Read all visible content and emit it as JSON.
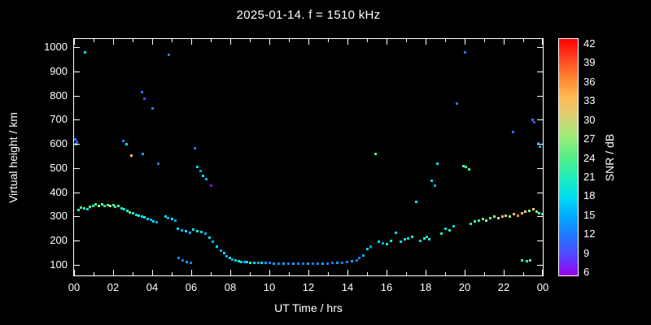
{
  "chart_data": {
    "type": "scatter",
    "title": "2025-01-14. f = 1510 kHz",
    "xlabel": "UT Time / hrs",
    "ylabel": "Virtual height / km",
    "xlim": [
      0,
      24
    ],
    "ylim": [
      55,
      1035
    ],
    "background": "#000000",
    "frame_color": "#ffffff",
    "x_ticks": {
      "values": [
        0,
        2,
        4,
        6,
        8,
        10,
        12,
        14,
        16,
        18,
        20,
        22,
        24
      ],
      "labels": [
        "00",
        "02",
        "04",
        "06",
        "08",
        "10",
        "12",
        "14",
        "16",
        "18",
        "20",
        "22",
        "00"
      ]
    },
    "y_ticks": {
      "values": [
        100,
        200,
        300,
        400,
        500,
        600,
        700,
        800,
        900,
        1000
      ],
      "labels": [
        "100",
        "200",
        "300",
        "400",
        "500",
        "600",
        "700",
        "800",
        "900",
        "1000"
      ]
    },
    "colorbar": {
      "label": "SNR / dB",
      "min": 6,
      "max": 42,
      "tick_values": [
        6,
        9,
        12,
        15,
        18,
        21,
        24,
        27,
        30,
        33,
        36,
        39,
        42
      ],
      "colormap": [
        {
          "value": 6,
          "color": "#9900ee"
        },
        {
          "value": 9,
          "color": "#5544ff"
        },
        {
          "value": 12,
          "color": "#2277ff"
        },
        {
          "value": 15,
          "color": "#00aaff"
        },
        {
          "value": 18,
          "color": "#00ddee"
        },
        {
          "value": 21,
          "color": "#22eebb"
        },
        {
          "value": 24,
          "color": "#55ee88"
        },
        {
          "value": 27,
          "color": "#99ee77"
        },
        {
          "value": 30,
          "color": "#d8d277"
        },
        {
          "value": 33,
          "color": "#ffbb55"
        },
        {
          "value": 36,
          "color": "#ff8833"
        },
        {
          "value": 39,
          "color": "#ff4422"
        },
        {
          "value": 42,
          "color": "#ff0000"
        }
      ]
    },
    "points": [
      [
        0.05,
        620,
        12
      ],
      [
        0.08,
        600,
        15
      ],
      [
        0.12,
        610,
        9
      ],
      [
        0.55,
        980,
        18
      ],
      [
        0.2,
        328,
        21
      ],
      [
        0.35,
        338,
        24
      ],
      [
        0.5,
        333,
        21
      ],
      [
        0.65,
        330,
        18
      ],
      [
        0.8,
        340,
        24
      ],
      [
        0.95,
        345,
        21
      ],
      [
        1.1,
        350,
        24
      ],
      [
        1.25,
        346,
        27
      ],
      [
        1.4,
        350,
        24
      ],
      [
        1.55,
        344,
        21
      ],
      [
        1.7,
        349,
        24
      ],
      [
        1.85,
        345,
        30
      ],
      [
        2.0,
        349,
        24
      ],
      [
        2.1,
        340,
        21
      ],
      [
        2.25,
        344,
        24
      ],
      [
        2.4,
        335,
        21
      ],
      [
        2.55,
        330,
        18
      ],
      [
        2.7,
        325,
        21
      ],
      [
        2.85,
        318,
        24
      ],
      [
        3.0,
        313,
        21
      ],
      [
        3.15,
        308,
        18
      ],
      [
        3.3,
        305,
        21
      ],
      [
        3.45,
        300,
        18
      ],
      [
        3.6,
        296,
        21
      ],
      [
        3.75,
        291,
        18
      ],
      [
        3.9,
        286,
        15
      ],
      [
        4.05,
        281,
        18
      ],
      [
        4.2,
        276,
        15
      ],
      [
        2.5,
        615,
        12
      ],
      [
        2.65,
        600,
        18
      ],
      [
        2.9,
        555,
        33
      ],
      [
        3.45,
        815,
        12
      ],
      [
        3.58,
        790,
        9
      ],
      [
        3.5,
        560,
        15
      ],
      [
        4.0,
        750,
        12
      ],
      [
        4.3,
        520,
        12
      ],
      [
        4.85,
        970,
        12
      ],
      [
        4.65,
        300,
        18
      ],
      [
        4.8,
        295,
        15
      ],
      [
        5.0,
        290,
        18
      ],
      [
        5.15,
        285,
        15
      ],
      [
        5.3,
        250,
        18
      ],
      [
        5.5,
        245,
        15
      ],
      [
        5.7,
        240,
        18
      ],
      [
        5.9,
        235,
        15
      ],
      [
        6.1,
        246,
        18
      ],
      [
        6.3,
        241,
        21
      ],
      [
        6.5,
        236,
        18
      ],
      [
        6.7,
        230,
        15
      ],
      [
        6.9,
        214,
        18
      ],
      [
        7.1,
        195,
        15
      ],
      [
        7.3,
        176,
        18
      ],
      [
        7.5,
        158,
        15
      ],
      [
        7.65,
        148,
        18
      ],
      [
        5.35,
        130,
        12
      ],
      [
        5.55,
        120,
        12
      ],
      [
        5.75,
        113,
        15
      ],
      [
        5.95,
        108,
        12
      ],
      [
        6.15,
        585,
        12
      ],
      [
        6.3,
        505,
        18
      ],
      [
        6.45,
        490,
        15
      ],
      [
        6.6,
        470,
        18
      ],
      [
        6.75,
        455,
        15
      ],
      [
        7.0,
        430,
        6
      ],
      [
        7.8,
        135,
        15
      ],
      [
        7.95,
        128,
        18
      ],
      [
        8.1,
        122,
        15
      ],
      [
        8.25,
        118,
        18
      ],
      [
        8.4,
        115,
        21
      ],
      [
        8.55,
        113,
        18
      ],
      [
        8.7,
        112,
        15
      ],
      [
        8.85,
        112,
        18
      ],
      [
        9.0,
        110,
        21
      ],
      [
        9.2,
        110,
        18
      ],
      [
        9.4,
        110,
        15
      ],
      [
        9.6,
        110,
        18
      ],
      [
        9.8,
        108,
        15
      ],
      [
        10.0,
        108,
        12
      ],
      [
        10.2,
        107,
        15
      ],
      [
        10.45,
        106,
        12
      ],
      [
        10.7,
        106,
        15
      ],
      [
        10.95,
        105,
        12
      ],
      [
        11.2,
        105,
        15
      ],
      [
        11.45,
        105,
        12
      ],
      [
        11.7,
        105,
        12
      ],
      [
        11.95,
        105,
        15
      ],
      [
        12.2,
        105,
        12
      ],
      [
        12.45,
        106,
        12
      ],
      [
        12.7,
        107,
        15
      ],
      [
        12.95,
        107,
        12
      ],
      [
        13.2,
        108,
        12
      ],
      [
        13.45,
        109,
        15
      ],
      [
        13.7,
        110,
        12
      ],
      [
        13.95,
        112,
        12
      ],
      [
        14.2,
        114,
        15
      ],
      [
        14.45,
        118,
        12
      ],
      [
        14.6,
        130,
        12
      ],
      [
        14.8,
        140,
        15
      ],
      [
        15.0,
        165,
        18
      ],
      [
        15.15,
        175,
        15
      ],
      [
        15.4,
        560,
        24
      ],
      [
        15.6,
        195,
        18
      ],
      [
        15.8,
        190,
        15
      ],
      [
        16.0,
        185,
        18
      ],
      [
        16.2,
        200,
        21
      ],
      [
        16.45,
        235,
        18
      ],
      [
        16.7,
        195,
        18
      ],
      [
        16.9,
        205,
        21
      ],
      [
        17.1,
        210,
        18
      ],
      [
        17.3,
        215,
        21
      ],
      [
        17.5,
        360,
        18
      ],
      [
        17.7,
        200,
        18
      ],
      [
        17.9,
        210,
        21
      ],
      [
        18.05,
        215,
        18
      ],
      [
        18.15,
        205,
        21
      ],
      [
        18.3,
        450,
        18
      ],
      [
        18.45,
        430,
        15
      ],
      [
        18.6,
        520,
        18
      ],
      [
        18.8,
        230,
        21
      ],
      [
        19.0,
        250,
        18
      ],
      [
        19.2,
        245,
        21
      ],
      [
        19.4,
        260,
        18
      ],
      [
        19.6,
        770,
        12
      ],
      [
        19.9,
        510,
        24
      ],
      [
        20.05,
        505,
        21
      ],
      [
        20.2,
        495,
        24
      ],
      [
        20.0,
        980,
        12
      ],
      [
        20.3,
        270,
        21
      ],
      [
        20.5,
        280,
        24
      ],
      [
        20.7,
        285,
        21
      ],
      [
        20.9,
        290,
        24
      ],
      [
        21.1,
        285,
        27
      ],
      [
        21.3,
        295,
        24
      ],
      [
        21.5,
        300,
        27
      ],
      [
        21.7,
        295,
        30
      ],
      [
        21.9,
        300,
        33
      ],
      [
        22.1,
        305,
        30
      ],
      [
        22.3,
        300,
        27
      ],
      [
        22.5,
        310,
        33
      ],
      [
        22.7,
        305,
        36
      ],
      [
        22.9,
        315,
        33
      ],
      [
        23.1,
        320,
        30
      ],
      [
        23.3,
        325,
        27
      ],
      [
        23.5,
        330,
        30
      ],
      [
        23.65,
        320,
        27
      ],
      [
        23.8,
        315,
        24
      ],
      [
        23.95,
        310,
        21
      ],
      [
        22.45,
        650,
        12
      ],
      [
        23.45,
        700,
        12
      ],
      [
        23.55,
        690,
        9
      ],
      [
        23.75,
        605,
        12
      ],
      [
        23.85,
        590,
        15
      ],
      [
        22.9,
        120,
        24
      ],
      [
        23.15,
        115,
        21
      ],
      [
        23.35,
        118,
        24
      ]
    ]
  }
}
